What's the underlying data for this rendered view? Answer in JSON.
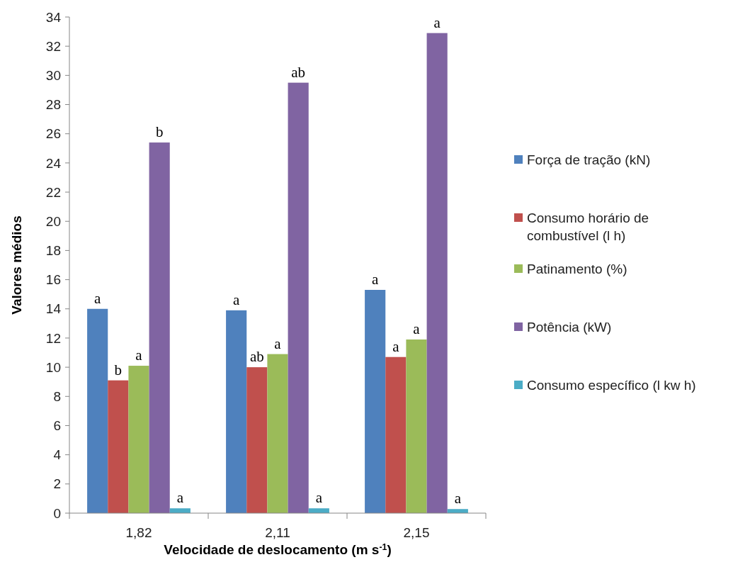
{
  "chart_data": {
    "type": "bar",
    "xlabel": "Velocidade de deslocamento (m s$^{-1}$)",
    "ylabel": "Valores médios",
    "categories": [
      "1,82",
      "2,11",
      "2,15"
    ],
    "series": [
      {
        "name": "Força de tração (kN)",
        "color": "#4f81bd",
        "values": [
          14.0,
          13.9,
          15.3
        ],
        "value_labels": [
          "a",
          "a",
          "a"
        ]
      },
      {
        "name": "Consumo horário de combustível (l h)",
        "color": "#c0504d",
        "values": [
          9.1,
          10.0,
          10.7
        ],
        "value_labels": [
          "b",
          "ab",
          "a"
        ]
      },
      {
        "name": "Patinamento (%)",
        "color": "#9bbb59",
        "values": [
          10.1,
          10.9,
          11.9
        ],
        "value_labels": [
          "a",
          "a",
          "a"
        ]
      },
      {
        "name": "Potência (kW)",
        "color": "#8064a2",
        "values": [
          25.4,
          29.5,
          32.9
        ],
        "value_labels": [
          "b",
          "ab",
          "a"
        ]
      },
      {
        "name": "Consumo específico (l kw h)",
        "color": "#4bacc6",
        "values": [
          0.33,
          0.33,
          0.28
        ],
        "value_labels": [
          "a",
          "a",
          "a"
        ]
      }
    ],
    "ylim": [
      0,
      34
    ],
    "yticks": [
      0,
      2,
      4,
      6,
      8,
      10,
      12,
      14,
      16,
      18,
      20,
      22,
      24,
      26,
      28,
      30,
      32,
      34
    ],
    "grid": false,
    "legend": "right"
  }
}
